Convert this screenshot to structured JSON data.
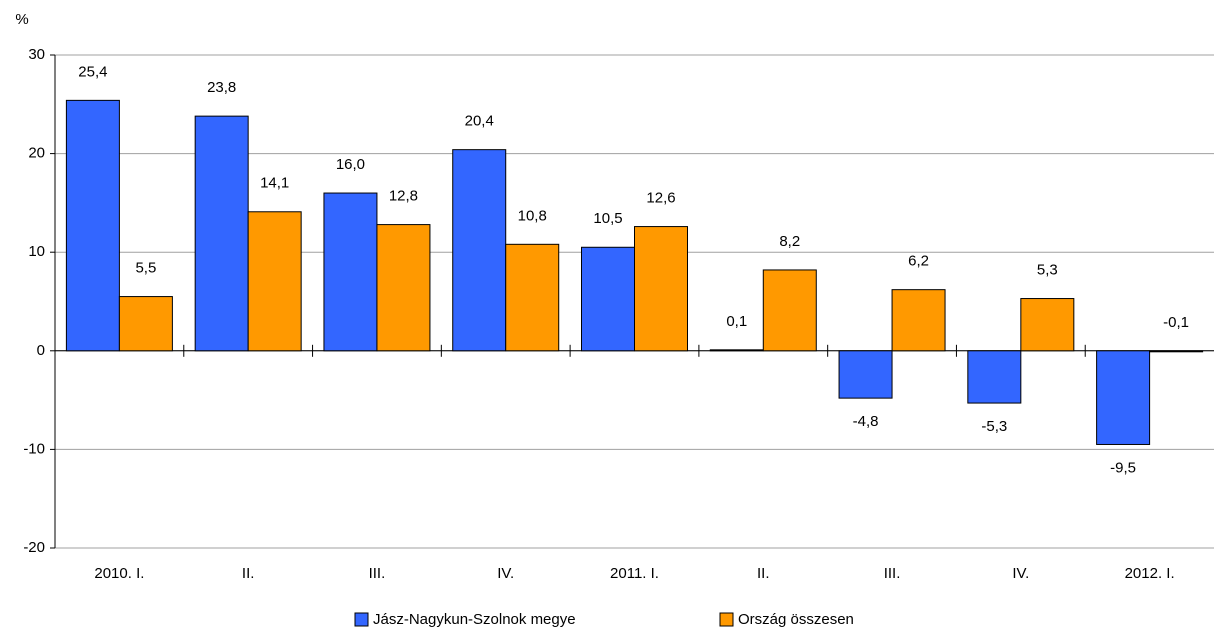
{
  "chart_data": {
    "type": "bar",
    "y_label": "%",
    "categories": [
      "2010. I.",
      "II.",
      "III.",
      "IV.",
      "2011. I.",
      "II.",
      "III.",
      "IV.",
      "2012. I."
    ],
    "series": [
      {
        "name": "Jász-Nagykun-Szolnok megye",
        "color": "#3366ff",
        "values": [
          25.4,
          23.8,
          16.0,
          20.4,
          10.5,
          0.1,
          -4.8,
          -5.3,
          -9.5
        ],
        "value_labels": [
          "25,4",
          "23,8",
          "16,0",
          "20,4",
          "10,5",
          "0,1",
          "-4,8",
          "-5,3",
          "-9,5"
        ]
      },
      {
        "name": "Ország összesen",
        "color": "#ff9900",
        "values": [
          5.5,
          14.1,
          12.8,
          10.8,
          12.6,
          8.2,
          6.2,
          5.3,
          -0.1
        ],
        "value_labels": [
          "5,5",
          "14,1",
          "12,8",
          "10,8",
          "12,6",
          "8,2",
          "6,2",
          "5,3",
          "-0,1"
        ]
      }
    ],
    "ylim": [
      -20,
      30
    ],
    "yticks": [
      -20,
      -10,
      0,
      10,
      20,
      30
    ],
    "grid": true,
    "legend": "bottom"
  }
}
